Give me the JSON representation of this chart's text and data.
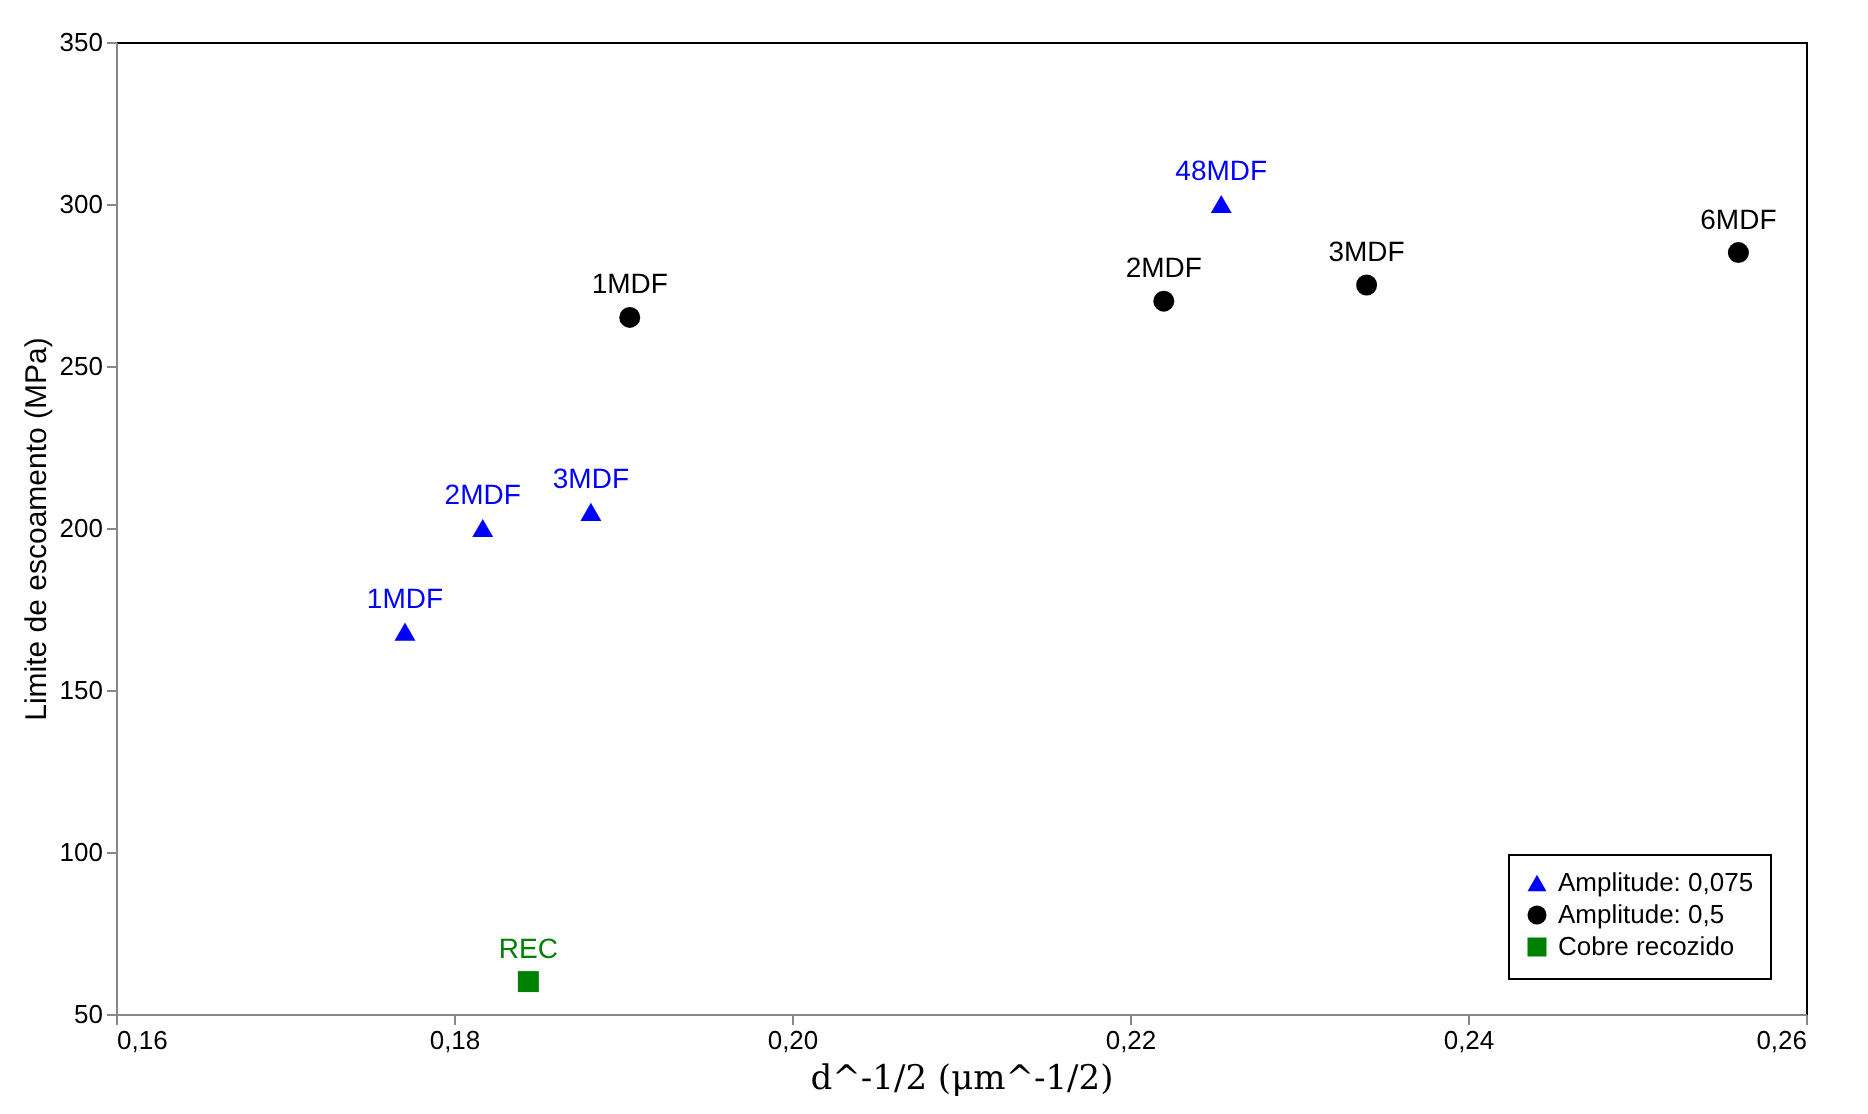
{
  "chart_data": {
    "type": "scatter",
    "xlabel": "d^-1/2 (μm^-1/2)",
    "ylabel": "Limite de escoamento (MPa)",
    "xlim": [
      0.16,
      0.26
    ],
    "xticks": [
      {
        "value": 0.16,
        "label": "0,16"
      },
      {
        "value": 0.18,
        "label": "0,18"
      },
      {
        "value": 0.2,
        "label": "0,20"
      },
      {
        "value": 0.22,
        "label": "0,22"
      },
      {
        "value": 0.24,
        "label": "0,24"
      },
      {
        "value": 0.26,
        "label": "0,26"
      }
    ],
    "ylim": [
      50,
      350
    ],
    "yticks": [
      50,
      100,
      150,
      200,
      250,
      300,
      350
    ],
    "grid": false,
    "legend": "bottom right",
    "series": [
      {
        "name": "Amplitude: 0,075",
        "color": "#0000ff",
        "marker": "triangle",
        "x": [
          0.1771,
          0.1817,
          0.1881,
          0.2254
        ],
        "values": [
          168,
          200,
          205,
          300
        ]
      },
      {
        "name": "Amplitude: 0,5",
        "color": "#000000",
        "marker": "circle",
        "x": [
          0.1904,
          0.222,
          0.234,
          0.256
        ],
        "values": [
          265,
          270,
          275,
          285
        ]
      },
      {
        "name": "Cobre recozido",
        "color": "#008000",
        "marker": "square",
        "x": [
          0.1844
        ],
        "values": [
          60
        ]
      }
    ],
    "annotations": [
      {
        "text": "1MDF",
        "x": 0.1771,
        "y": 168
      },
      {
        "text": "2MDF",
        "x": 0.1817,
        "y": 200
      },
      {
        "text": "3MDF",
        "x": 0.1881,
        "y": 205
      },
      {
        "text": "48MDF",
        "x": 0.2254,
        "y": 300
      },
      {
        "text": "1MDF",
        "x": 0.1904,
        "y": 265
      },
      {
        "text": "2MDF",
        "x": 0.222,
        "y": 270
      },
      {
        "text": "3MDF",
        "x": 0.234,
        "y": 275
      },
      {
        "text": "6MDF",
        "x": 0.256,
        "y": 285
      },
      {
        "text": "REC",
        "x": 0.1844,
        "y": 60
      }
    ]
  }
}
